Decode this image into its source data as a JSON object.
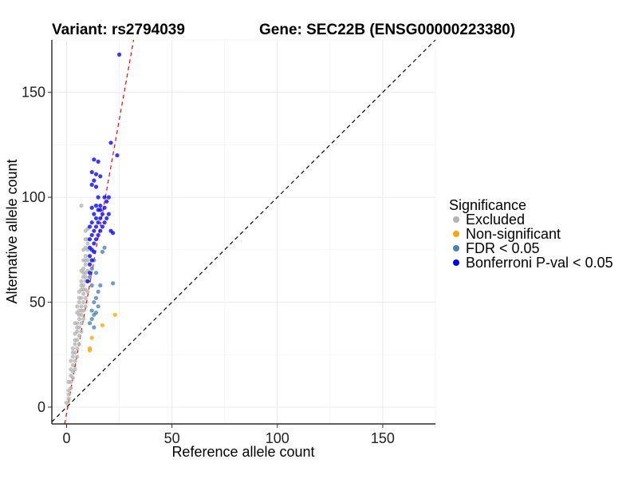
{
  "title_left": "Variant: rs2794039",
  "title_right": "Gene: SEC22B (ENSG00000223380)",
  "chart_data": {
    "type": "scatter",
    "xlabel": "Reference allele count",
    "ylabel": "Alternative allele count",
    "xlim": [
      -7,
      175
    ],
    "ylim": [
      -8,
      175
    ],
    "x_ticks": [
      0,
      50,
      100,
      150
    ],
    "y_ticks": [
      0,
      50,
      100,
      150
    ],
    "grid": true,
    "legend_position": "right",
    "legend_title": "Significance",
    "series": [
      {
        "name": "Excluded",
        "color": "#b3b3b3",
        "points": [
          [
            0,
            2
          ],
          [
            1,
            4
          ],
          [
            1,
            8
          ],
          [
            1,
            12
          ],
          [
            2,
            9
          ],
          [
            2,
            15
          ],
          [
            2,
            18
          ],
          [
            3,
            14
          ],
          [
            3,
            20
          ],
          [
            3,
            24
          ],
          [
            3,
            28
          ],
          [
            4,
            18
          ],
          [
            4,
            22
          ],
          [
            4,
            26
          ],
          [
            4,
            30
          ],
          [
            4,
            35
          ],
          [
            5,
            24
          ],
          [
            5,
            28
          ],
          [
            5,
            32
          ],
          [
            5,
            36
          ],
          [
            5,
            40
          ],
          [
            5,
            45
          ],
          [
            6,
            30
          ],
          [
            6,
            34
          ],
          [
            6,
            38
          ],
          [
            6,
            42
          ],
          [
            6,
            46
          ],
          [
            6,
            50
          ],
          [
            6,
            55
          ],
          [
            7,
            36
          ],
          [
            7,
            40
          ],
          [
            7,
            44
          ],
          [
            7,
            48
          ],
          [
            7,
            52
          ],
          [
            7,
            56
          ],
          [
            7,
            60
          ],
          [
            7,
            65
          ],
          [
            8,
            42
          ],
          [
            8,
            46
          ],
          [
            8,
            50
          ],
          [
            8,
            54
          ],
          [
            8,
            58
          ],
          [
            8,
            62
          ],
          [
            8,
            66
          ],
          [
            8,
            70
          ],
          [
            8,
            75
          ],
          [
            9,
            48
          ],
          [
            9,
            52
          ],
          [
            9,
            56
          ],
          [
            9,
            60
          ],
          [
            9,
            64
          ],
          [
            9,
            68
          ],
          [
            9,
            72
          ],
          [
            9,
            76
          ],
          [
            9,
            80
          ],
          [
            9,
            84
          ],
          [
            10,
            55
          ],
          [
            10,
            60
          ],
          [
            10,
            65
          ],
          [
            10,
            70
          ],
          [
            10,
            75
          ],
          [
            10,
            80
          ],
          [
            10,
            85
          ],
          [
            2,
            12
          ],
          [
            3,
            17
          ],
          [
            4,
            32
          ],
          [
            5,
            38
          ],
          [
            6,
            44
          ],
          [
            7,
            58
          ],
          [
            8,
            64
          ],
          [
            9,
            70
          ],
          [
            10,
            78
          ],
          [
            1,
            6
          ],
          [
            2,
            22
          ],
          [
            3,
            26
          ],
          [
            4,
            40
          ],
          [
            5,
            48
          ],
          [
            6,
            52
          ],
          [
            7,
            46
          ],
          [
            8,
            56
          ],
          [
            9,
            62
          ],
          [
            7,
            96
          ]
        ]
      },
      {
        "name": "Non-significant",
        "color": "#ffa500",
        "points": [
          [
            11,
            27
          ],
          [
            11,
            28
          ],
          [
            12,
            33
          ],
          [
            17,
            39
          ],
          [
            23,
            44
          ]
        ]
      },
      {
        "name": "FDR < 0.05",
        "color": "#4682b4",
        "points": [
          [
            11,
            40
          ],
          [
            12,
            42
          ],
          [
            12,
            46
          ],
          [
            13,
            38
          ],
          [
            13,
            44
          ],
          [
            13,
            50
          ],
          [
            14,
            45
          ],
          [
            14,
            52
          ],
          [
            15,
            48
          ],
          [
            15,
            55
          ],
          [
            16,
            58
          ],
          [
            17,
            74
          ],
          [
            18,
            76
          ],
          [
            22,
            59
          ],
          [
            11,
            62
          ],
          [
            12,
            66
          ],
          [
            13,
            70
          ],
          [
            12,
            58
          ],
          [
            14,
            64
          ]
        ]
      },
      {
        "name": "Bonferroni P-val < 0.05",
        "color": "#0000ff",
        "points": [
          [
            10,
            60
          ],
          [
            11,
            64
          ],
          [
            11,
            68
          ],
          [
            11,
            72
          ],
          [
            11,
            76
          ],
          [
            11,
            80
          ],
          [
            11,
            86
          ],
          [
            12,
            70
          ],
          [
            12,
            75
          ],
          [
            12,
            82
          ],
          [
            12,
            88
          ],
          [
            13,
            74
          ],
          [
            13,
            78
          ],
          [
            13,
            84
          ],
          [
            13,
            92
          ],
          [
            14,
            80
          ],
          [
            14,
            86
          ],
          [
            14,
            90
          ],
          [
            14,
            96
          ],
          [
            15,
            82
          ],
          [
            15,
            88
          ],
          [
            15,
            94
          ],
          [
            15,
            100
          ],
          [
            16,
            84
          ],
          [
            16,
            90
          ],
          [
            16,
            96
          ],
          [
            17,
            86
          ],
          [
            17,
            92
          ],
          [
            18,
            88
          ],
          [
            18,
            95
          ],
          [
            19,
            90
          ],
          [
            19,
            98
          ],
          [
            20,
            92
          ],
          [
            20,
            100
          ],
          [
            21,
            84
          ],
          [
            22,
            83
          ],
          [
            12,
            106
          ],
          [
            13,
            108
          ],
          [
            14,
            111
          ],
          [
            13,
            118
          ],
          [
            15,
            117
          ],
          [
            14,
            105
          ],
          [
            16,
            110
          ],
          [
            12,
            112
          ],
          [
            18,
            100
          ],
          [
            21,
            126
          ],
          [
            24,
            120
          ],
          [
            25,
            168
          ],
          [
            16,
            94
          ],
          [
            12,
            95
          ]
        ]
      }
    ],
    "reference_lines": [
      {
        "name": "identity",
        "color": "#000000",
        "style": "dashed",
        "slope": 1,
        "intercept": 0
      },
      {
        "name": "fit",
        "color": "#ff0000",
        "style": "dashed",
        "slope": 5.6,
        "intercept": -3
      }
    ]
  }
}
